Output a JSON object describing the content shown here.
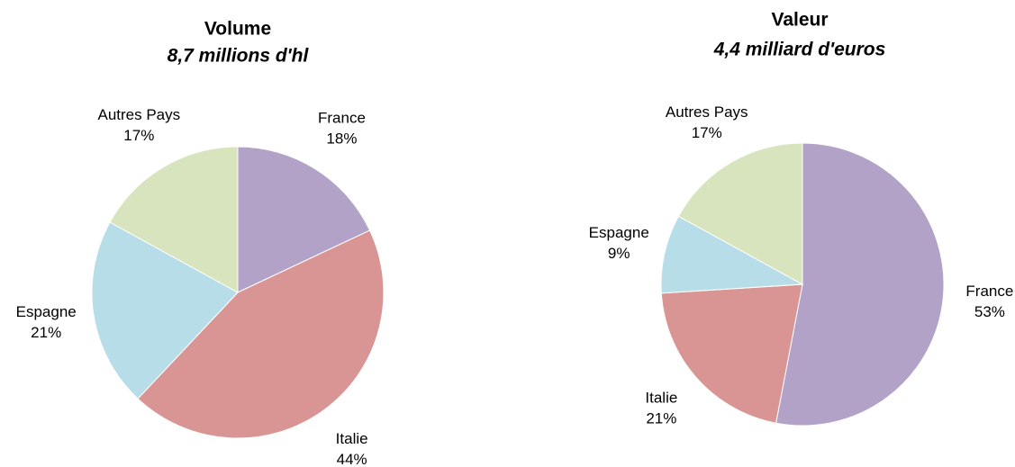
{
  "chart_data": [
    {
      "type": "pie",
      "title": "Volume",
      "subtitle": "8,7 millions d'hl",
      "categories": [
        "France",
        "Italie",
        "Espagne",
        "Autres Pays"
      ],
      "values": [
        18,
        44,
        21,
        17
      ],
      "value_labels": [
        "18%",
        "44%",
        "21%",
        "17%"
      ],
      "colors": [
        "#b3a2c7",
        "#d99594",
        "#b7dde8",
        "#d7e4bd"
      ]
    },
    {
      "type": "pie",
      "title": "Valeur",
      "subtitle": "4,4 milliard d'euros",
      "categories": [
        "France",
        "Italie",
        "Espagne",
        "Autres Pays"
      ],
      "values": [
        53,
        21,
        9,
        17
      ],
      "value_labels": [
        "53%",
        "21%",
        "9%",
        "17%"
      ],
      "colors": [
        "#b3a2c7",
        "#d99594",
        "#b7dde8",
        "#d7e4bd"
      ]
    }
  ]
}
